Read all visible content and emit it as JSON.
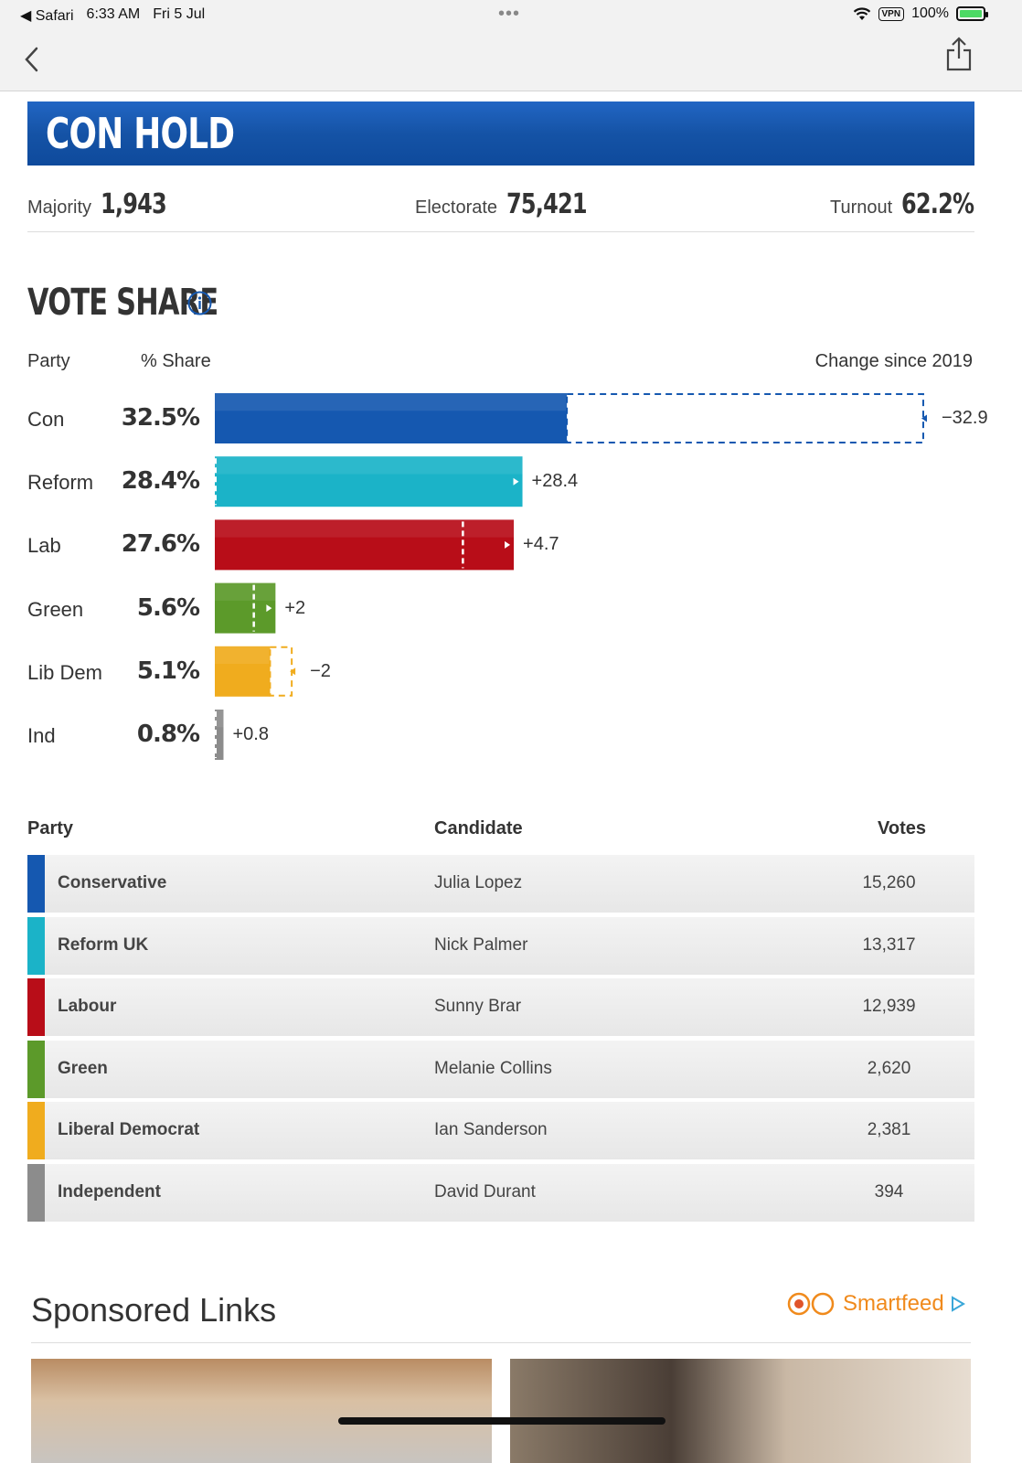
{
  "status_bar": {
    "back_app": "◀ Safari",
    "time": "6:33 AM",
    "date": "Fri 5 Jul",
    "dots": "•••",
    "vpn": "VPN",
    "battery": "100%"
  },
  "result": {
    "title": "CON HOLD",
    "majority_label": "Majority",
    "majority": "1,943",
    "electorate_label": "Electorate",
    "electorate": "75,421",
    "turnout_label": "Turnout",
    "turnout": "62.2%"
  },
  "vote_share": {
    "title": "VOTE SHARE",
    "party_col": "Party",
    "share_col": "% Share",
    "change_col": "Change since 2019"
  },
  "chart_data": {
    "type": "bar",
    "categories": [
      "Con",
      "Reform",
      "Lab",
      "Green",
      "Lib Dem",
      "Ind"
    ],
    "values": [
      32.5,
      28.4,
      27.6,
      5.6,
      5.1,
      0.8
    ],
    "value_labels": [
      "32.5%",
      "28.4%",
      "27.6%",
      "5.6%",
      "5.1%",
      "0.8%"
    ],
    "change": [
      -32.9,
      28.4,
      4.7,
      2,
      -2,
      0.8
    ],
    "change_labels": [
      "−32.9",
      "+28.4",
      "+4.7",
      "+2",
      "−2",
      "+0.8"
    ],
    "colors": [
      "#1558b0",
      "#1bb3c8",
      "#b80d18",
      "#5c9a2a",
      "#f0ac1e",
      "#8c8c8c"
    ],
    "scale_max": 65.4
  },
  "table": {
    "party_col": "Party",
    "candidate_col": "Candidate",
    "votes_col": "Votes",
    "rows": [
      {
        "party": "Conservative",
        "candidate": "Julia Lopez",
        "votes": "15,260",
        "color": "#1558b0"
      },
      {
        "party": "Reform UK",
        "candidate": "Nick Palmer",
        "votes": "13,317",
        "color": "#1bb3c8"
      },
      {
        "party": "Labour",
        "candidate": "Sunny Brar",
        "votes": "12,939",
        "color": "#b80d18"
      },
      {
        "party": "Green",
        "candidate": "Melanie Collins",
        "votes": "2,620",
        "color": "#5c9a2a"
      },
      {
        "party": "Liberal Democrat",
        "candidate": "Ian Sanderson",
        "votes": "2,381",
        "color": "#f0ac1e"
      },
      {
        "party": "Independent",
        "candidate": "David Durant",
        "votes": "394",
        "color": "#8c8c8c"
      }
    ]
  },
  "sponsored": {
    "title": "Sponsored Links",
    "brand": "Smartfeed"
  }
}
